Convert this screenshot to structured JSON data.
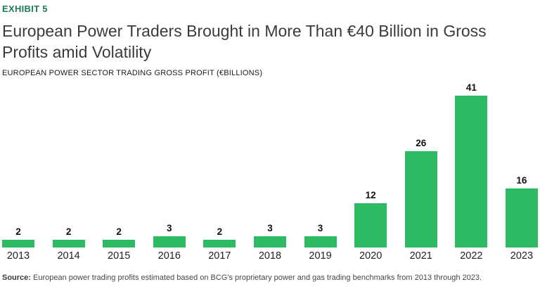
{
  "header": {
    "exhibit_label": "EXHIBIT 5",
    "title_lines": [
      "European Power Traders Brought in More Than €40 Billion in Gross",
      "Profits amid Volatility"
    ],
    "subtitle": "EUROPEAN POWER SECTOR TRADING GROSS PROFIT (€BILLIONS)"
  },
  "chart_data": {
    "type": "bar",
    "title": "EUROPEAN POWER SECTOR TRADING GROSS PROFIT (€BILLIONS)",
    "categories": [
      "2013",
      "2014",
      "2015",
      "2016",
      "2017",
      "2018",
      "2019",
      "2020",
      "2021",
      "2022",
      "2023"
    ],
    "values": [
      2,
      2,
      2,
      3,
      2,
      3,
      3,
      12,
      26,
      41,
      16
    ],
    "xlabel": "",
    "ylabel": "",
    "ylim": [
      0,
      44
    ],
    "grid": false,
    "axis_lines": false,
    "legend": "none",
    "data_labels": "above-bars",
    "bar_color": "#2cba63",
    "value_label_color": "#111111"
  },
  "footer": {
    "source_label": "Source:",
    "source_text": "European power trading profits estimated based on BCG's proprietary power and gas trading benchmarks from 2013 through 2023."
  },
  "colors": {
    "accent_green": "#2cba63",
    "exhibit_green": "#1e7d52",
    "title_gray": "#3b3b3b",
    "background": "#ffffff"
  }
}
